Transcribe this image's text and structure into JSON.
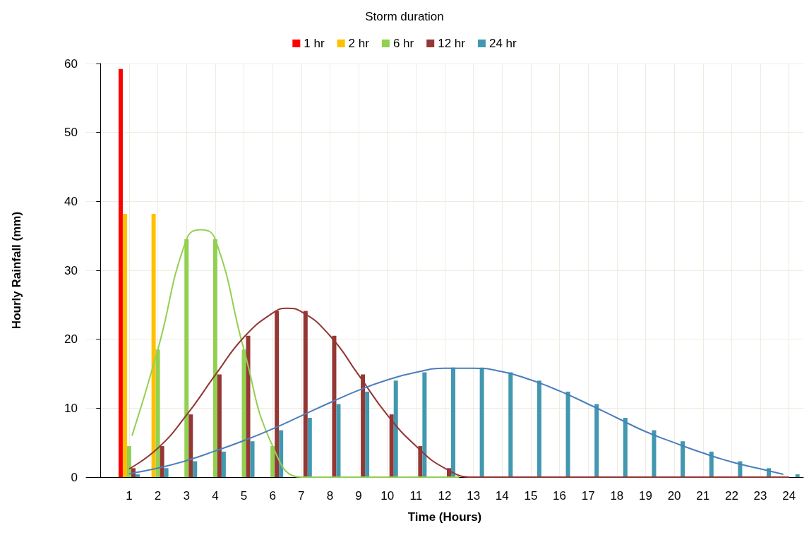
{
  "chart_data": {
    "type": "bar",
    "legend_title": "Storm duration",
    "xlabel": "Time (Hours)",
    "ylabel": "Hourly Rainfall (mm)",
    "x": [
      1,
      2,
      3,
      4,
      5,
      6,
      7,
      8,
      9,
      10,
      11,
      12,
      13,
      14,
      15,
      16,
      17,
      18,
      19,
      20,
      21,
      22,
      23,
      24
    ],
    "xlim": [
      -0.5,
      24.5
    ],
    "xticks": [
      1,
      2,
      3,
      4,
      5,
      6,
      7,
      8,
      9,
      10,
      11,
      12,
      13,
      14,
      15,
      16,
      17,
      18,
      19,
      20,
      21,
      22,
      23,
      24
    ],
    "ylim": [
      0,
      60
    ],
    "yticks": [
      0,
      10,
      20,
      30,
      40,
      50,
      60
    ],
    "grid": true,
    "legend": "top",
    "marker": "none",
    "series": [
      {
        "name": "1 hr",
        "color": "#ff0000",
        "values": [
          59.2,
          null,
          null,
          null,
          null,
          null,
          null,
          null,
          null,
          null,
          null,
          null,
          null,
          null,
          null,
          null,
          null,
          null,
          null,
          null,
          null,
          null,
          null,
          null
        ]
      },
      {
        "name": "2 hr",
        "color": "#ffc000",
        "values": [
          38.2,
          38.2,
          null,
          null,
          null,
          null,
          null,
          null,
          null,
          null,
          null,
          null,
          null,
          null,
          null,
          null,
          null,
          null,
          null,
          null,
          null,
          null,
          null,
          null
        ]
      },
      {
        "name": "6 hr",
        "color": "#92d050",
        "values": [
          4.5,
          18.5,
          34.5,
          34.5,
          18.5,
          4.5,
          null,
          null,
          null,
          null,
          null,
          null,
          null,
          null,
          null,
          null,
          null,
          null,
          null,
          null,
          null,
          null,
          null,
          null
        ]
      },
      {
        "name": "12 hr",
        "color": "#953735",
        "values": [
          1.3,
          4.5,
          9.1,
          14.9,
          20.5,
          24.1,
          24.1,
          20.5,
          14.9,
          9.1,
          4.5,
          1.3,
          null,
          null,
          null,
          null,
          null,
          null,
          null,
          null,
          null,
          null,
          null,
          null
        ]
      },
      {
        "name": "24 hr",
        "color": "#4198af",
        "values": [
          0.4,
          1.3,
          2.3,
          3.7,
          5.2,
          6.8,
          8.6,
          10.6,
          12.4,
          14.0,
          15.2,
          15.9,
          15.9,
          15.2,
          14.0,
          12.4,
          10.6,
          8.6,
          6.8,
          5.2,
          3.7,
          2.3,
          1.3,
          0.4
        ]
      },
      {
        "type": "line",
        "color": "#92d050",
        "x": [
          1.1,
          2,
          3,
          3.5,
          4,
          5,
          6,
          7,
          8,
          12.5
        ],
        "values": [
          6,
          18.5,
          34.5,
          35.9,
          34.5,
          18.5,
          4.5,
          0,
          0,
          0
        ]
      },
      {
        "type": "line",
        "color": "#943634",
        "x": [
          1,
          2,
          3,
          4,
          5,
          6,
          6.5,
          7,
          8,
          9,
          10,
          11,
          12,
          13,
          24
        ],
        "values": [
          1.2,
          4.2,
          9,
          14.8,
          20.3,
          23.8,
          24.5,
          24,
          20.5,
          14.8,
          9,
          4.5,
          1.3,
          0,
          0
        ]
      },
      {
        "type": "line",
        "color": "#4a7ebb",
        "x": [
          1,
          2,
          3,
          4,
          5,
          6,
          7,
          8,
          9,
          10,
          11,
          12,
          13,
          14,
          15,
          16,
          17,
          18,
          19,
          20,
          21,
          22,
          23,
          23.8
        ],
        "values": [
          0.5,
          1.3,
          2.4,
          3.8,
          5.3,
          7,
          8.9,
          10.8,
          12.6,
          14.1,
          15.2,
          15.8,
          15.8,
          15.3,
          14.1,
          12.5,
          10.6,
          8.6,
          6.6,
          5,
          3.5,
          2.2,
          1.2,
          0.4
        ]
      }
    ]
  }
}
